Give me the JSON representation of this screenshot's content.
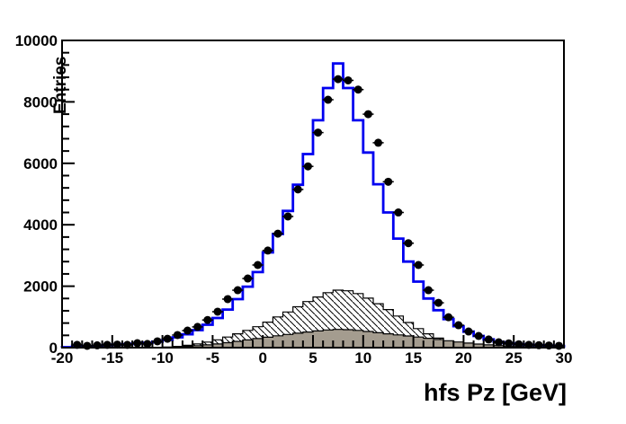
{
  "chart_data": {
    "type": "bar",
    "subtype": "root-style-1d-histogram",
    "title": "",
    "xlabel": "hfs Pz [GeV]",
    "ylabel": "Entries",
    "xlim": [
      -20,
      30
    ],
    "ylim": [
      0,
      10000
    ],
    "grid": false,
    "legend": "none",
    "bin_width": 1,
    "bin_start": -20,
    "x_major_ticks": [
      -20,
      -15,
      -10,
      -5,
      0,
      5,
      10,
      15,
      20,
      25,
      30
    ],
    "x_tick_labels": [
      "-20",
      "-15",
      "-10",
      "-5",
      "0",
      "5",
      "10",
      "15",
      "20",
      "25",
      "30"
    ],
    "x_minor_tick_step": 1,
    "y_major_ticks": [
      0,
      2000,
      4000,
      6000,
      8000,
      10000
    ],
    "y_tick_labels": [
      "0",
      "2000",
      "4000",
      "6000",
      "8000",
      "10000"
    ],
    "y_minor_tick_step": 400,
    "series": [
      {
        "name": "total-mc-histogram",
        "style": "step-outline",
        "color": "#0000f0",
        "line_width": 2.8,
        "values": [
          15,
          60,
          40,
          50,
          80,
          95,
          110,
          140,
          155,
          195,
          255,
          335,
          435,
          570,
          745,
          965,
          1240,
          1580,
          1985,
          2460,
          3100,
          3700,
          4450,
          5300,
          6300,
          7400,
          8450,
          9250,
          8450,
          7400,
          6350,
          5320,
          4400,
          3550,
          2800,
          2150,
          1600,
          1220,
          930,
          700,
          520,
          380,
          270,
          190,
          145,
          115,
          90,
          75,
          65,
          55
        ]
      },
      {
        "name": "hatched-background-histogram",
        "style": "step-fill-hatched",
        "fill": "diagonal-hatch",
        "outline_color": "#000000",
        "values": [
          0,
          0,
          0,
          0,
          0,
          0,
          0,
          0,
          0,
          10,
          20,
          40,
          75,
          120,
          180,
          255,
          345,
          450,
          560,
          680,
          830,
          1000,
          1160,
          1330,
          1500,
          1650,
          1790,
          1870,
          1850,
          1760,
          1610,
          1430,
          1240,
          1030,
          820,
          620,
          450,
          310,
          200,
          120,
          65,
          30,
          12,
          5,
          0,
          0,
          0,
          0,
          0,
          0
        ]
      },
      {
        "name": "gray-background-histogram",
        "style": "step-fill-solid",
        "fill_color": "#a49c8f",
        "outline_color": "#000000",
        "values": [
          0,
          0,
          0,
          0,
          0,
          0,
          0,
          0,
          0,
          8,
          15,
          28,
          45,
          65,
          90,
          120,
          160,
          205,
          250,
          295,
          340,
          385,
          430,
          470,
          510,
          545,
          575,
          595,
          585,
          560,
          525,
          485,
          450,
          415,
          380,
          345,
          305,
          265,
          225,
          185,
          150,
          118,
          90,
          68,
          50,
          35,
          24,
          15,
          9,
          5
        ]
      },
      {
        "name": "data-points",
        "style": "marker-circle-with-xerror",
        "color": "#000000",
        "marker_radius": 4.5,
        "points": [
          {
            "x": -18.5,
            "y": 90
          },
          {
            "x": -17.5,
            "y": 60
          },
          {
            "x": -16.5,
            "y": 75
          },
          {
            "x": -15.5,
            "y": 90
          },
          {
            "x": -14.5,
            "y": 100
          },
          {
            "x": -13.5,
            "y": 90
          },
          {
            "x": -12.5,
            "y": 145
          },
          {
            "x": -11.5,
            "y": 120
          },
          {
            "x": -10.5,
            "y": 205
          },
          {
            "x": -9.5,
            "y": 290
          },
          {
            "x": -8.5,
            "y": 410
          },
          {
            "x": -7.5,
            "y": 555
          },
          {
            "x": -6.5,
            "y": 675
          },
          {
            "x": -5.5,
            "y": 900
          },
          {
            "x": -4.5,
            "y": 1170
          },
          {
            "x": -3.5,
            "y": 1580
          },
          {
            "x": -2.5,
            "y": 1870
          },
          {
            "x": -1.5,
            "y": 2250
          },
          {
            "x": -0.5,
            "y": 2690
          },
          {
            "x": 0.5,
            "y": 3160
          },
          {
            "x": 1.5,
            "y": 3710
          },
          {
            "x": 2.5,
            "y": 4270
          },
          {
            "x": 3.5,
            "y": 5150
          },
          {
            "x": 4.5,
            "y": 5900
          },
          {
            "x": 5.5,
            "y": 7000
          },
          {
            "x": 6.5,
            "y": 8070
          },
          {
            "x": 7.5,
            "y": 8740
          },
          {
            "x": 8.5,
            "y": 8700
          },
          {
            "x": 9.5,
            "y": 8400
          },
          {
            "x": 10.5,
            "y": 7600
          },
          {
            "x": 11.5,
            "y": 6670
          },
          {
            "x": 12.5,
            "y": 5400
          },
          {
            "x": 13.5,
            "y": 4400
          },
          {
            "x": 14.5,
            "y": 3400
          },
          {
            "x": 15.5,
            "y": 2690
          },
          {
            "x": 16.5,
            "y": 1870
          },
          {
            "x": 17.5,
            "y": 1460
          },
          {
            "x": 18.5,
            "y": 990
          },
          {
            "x": 19.5,
            "y": 730
          },
          {
            "x": 20.5,
            "y": 525
          },
          {
            "x": 21.5,
            "y": 380
          },
          {
            "x": 22.5,
            "y": 265
          },
          {
            "x": 23.5,
            "y": 175
          },
          {
            "x": 24.5,
            "y": 140
          },
          {
            "x": 25.5,
            "y": 110
          },
          {
            "x": 26.5,
            "y": 90
          },
          {
            "x": 27.5,
            "y": 80
          },
          {
            "x": 28.5,
            "y": 70
          },
          {
            "x": 29.5,
            "y": 60
          }
        ]
      }
    ]
  },
  "colors": {
    "background": "#ffffff",
    "frame": "#000000",
    "mc_line": "#0000f0",
    "gray_fill": "#a49c8f",
    "text": "#000000"
  }
}
